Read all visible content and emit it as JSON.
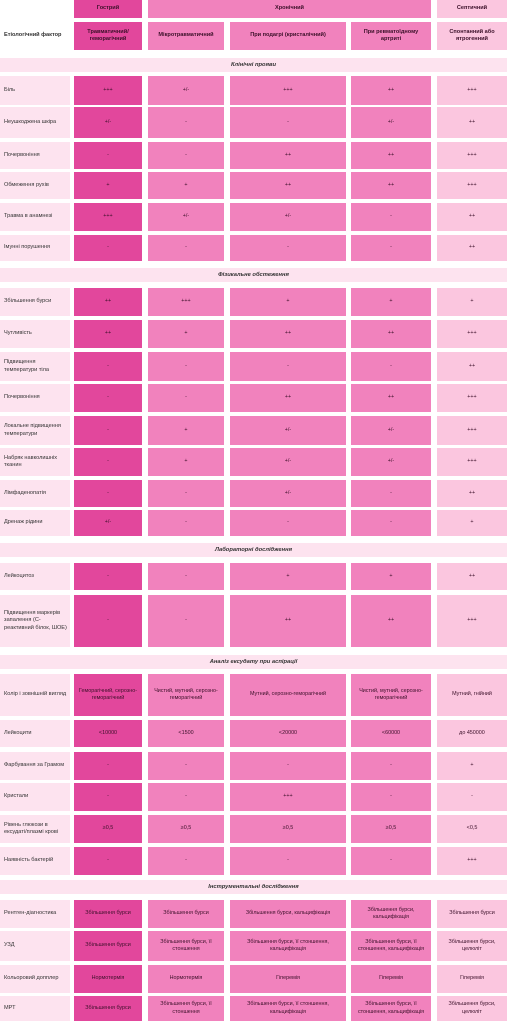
{
  "header": {
    "top": {
      "col0": "Гострий",
      "chronic": "Хронічний",
      "col4": "Септичний"
    },
    "sub": {
      "label": "Етіологічний фактор",
      "cols": [
        "Травматичний/ геморагічний",
        "Мікротравматичний",
        "При подагрі (кристалічний)",
        "При ревматоїдному артриті",
        "Спонтанний або ятрогенний"
      ]
    }
  },
  "sections": [
    {
      "title": "Клінічні прояви",
      "rows": [
        {
          "label": "Біль",
          "values": [
            "+++",
            "+/-",
            "+++",
            "++",
            "+++"
          ]
        },
        {
          "label": "Неушкоджена шкіра",
          "values": [
            "+/-",
            "-",
            "-",
            "+/-",
            "++"
          ]
        },
        {
          "label": "Почервоніння",
          "values": [
            "-",
            "-",
            "++",
            "++",
            "+++"
          ]
        },
        {
          "label": "Обмеження рухів",
          "values": [
            "+",
            "+",
            "++",
            "++",
            "+++"
          ]
        },
        {
          "label": "Травма в анамнезі",
          "values": [
            "+++",
            "+/-",
            "+/-",
            "-",
            "++"
          ]
        },
        {
          "label": "Імунні порушення",
          "values": [
            "-",
            "-",
            "-",
            "-",
            "++"
          ]
        }
      ]
    },
    {
      "title": "Фізикальне обстеження",
      "rows": [
        {
          "label": "Збільшення бурси",
          "values": [
            "++",
            "+++",
            "+",
            "+",
            "+"
          ]
        },
        {
          "label": "Чутливість",
          "values": [
            "++",
            "+",
            "++",
            "++",
            "+++"
          ]
        },
        {
          "label": "Підвищення температури тіла",
          "values": [
            "-",
            "-",
            "-",
            "-",
            "++"
          ]
        },
        {
          "label": "Почервоніння",
          "values": [
            "-",
            "-",
            "++",
            "++",
            "+++"
          ]
        },
        {
          "label": "Локальне підвищення температури",
          "values": [
            "-",
            "+",
            "+/-",
            "+/-",
            "+++"
          ]
        },
        {
          "label": "Набряк навколишніх тканин",
          "values": [
            "-",
            "+",
            "+/-",
            "+/-",
            "+++"
          ]
        },
        {
          "label": "Лімфаденопатія",
          "values": [
            "-",
            "-",
            "+/-",
            "-",
            "++"
          ]
        },
        {
          "label": "Дренаж рідини",
          "values": [
            "+/-",
            "-",
            "-",
            "-",
            "+"
          ]
        }
      ]
    },
    {
      "title": "Лабораторні дослідження",
      "rows": [
        {
          "label": "Лейкоцитоз",
          "values": [
            "-",
            "-",
            "+",
            "+",
            "++"
          ]
        },
        {
          "label": "Підвищення маркерів запалення (С-реактивний білок, ШОЕ)",
          "values": [
            "-",
            "-",
            "++",
            "++",
            "+++"
          ]
        }
      ]
    },
    {
      "title": "Аналіз ексудату при аспірації",
      "rows": [
        {
          "label": "Колір і зовнішній вигляд",
          "values": [
            "Геморагічний, серозно-геморагічний",
            "Чистий, мутний, серозно-геморагічний",
            "Мутний, серозно-геморагічний",
            "Чистий, мутний, серозно-геморагічний",
            "Мутний, гнійний"
          ]
        },
        {
          "label": "Лейкоцити",
          "values": [
            "<10000",
            "<1500",
            "<20000",
            "<60000",
            "до 450000"
          ]
        },
        {
          "label": "Фарбування за Грамом",
          "values": [
            "-",
            "-",
            "-",
            "-",
            "+"
          ]
        },
        {
          "label": "Кристали",
          "values": [
            "-",
            "-",
            "+++",
            "-",
            "-"
          ]
        },
        {
          "label": "Рівень глюкози в ексудаті/плазмі крові",
          "values": [
            "≥0,5",
            "≥0,5",
            "≥0,5",
            "≥0,5",
            "<0,5"
          ]
        },
        {
          "label": "Наявність бактерій",
          "values": [
            "-",
            "-",
            "-",
            "-",
            "+++"
          ]
        }
      ]
    },
    {
      "title": "Інструментальні дослідження",
      "rows": [
        {
          "label": "Рентген-діагностика",
          "values": [
            "Збільшення бурси",
            "Збільшення бурси",
            "Збільшення бурси, кальцифікація",
            "Збільшення бурси, кальцифікація",
            "Збільшення бурси"
          ]
        },
        {
          "label": "УЗД",
          "values": [
            "Збільшення бурси",
            "Збільшення бурси, її стоншення",
            "Збільшення бурси, її стоншення, кальцифікація",
            "Збільшення бурси, її стоншення, кальцифікація",
            "Збільшення бурси, целюліт"
          ]
        },
        {
          "label": "Кольоровий допплер",
          "values": [
            "Нормотермія",
            "Нормотермія",
            "Гіперемія",
            "Гіперемія",
            "Гіперемія"
          ]
        },
        {
          "label": "МРТ",
          "values": [
            "Збільшення бурси",
            "Збільшення бурси, її стоншення",
            "Збільшення бурси, її стоншення, кальцифікація",
            "Збільшення бурси, її стоншення, кальцифікація",
            "Збільшення бурси, целюліт"
          ]
        }
      ]
    }
  ]
}
